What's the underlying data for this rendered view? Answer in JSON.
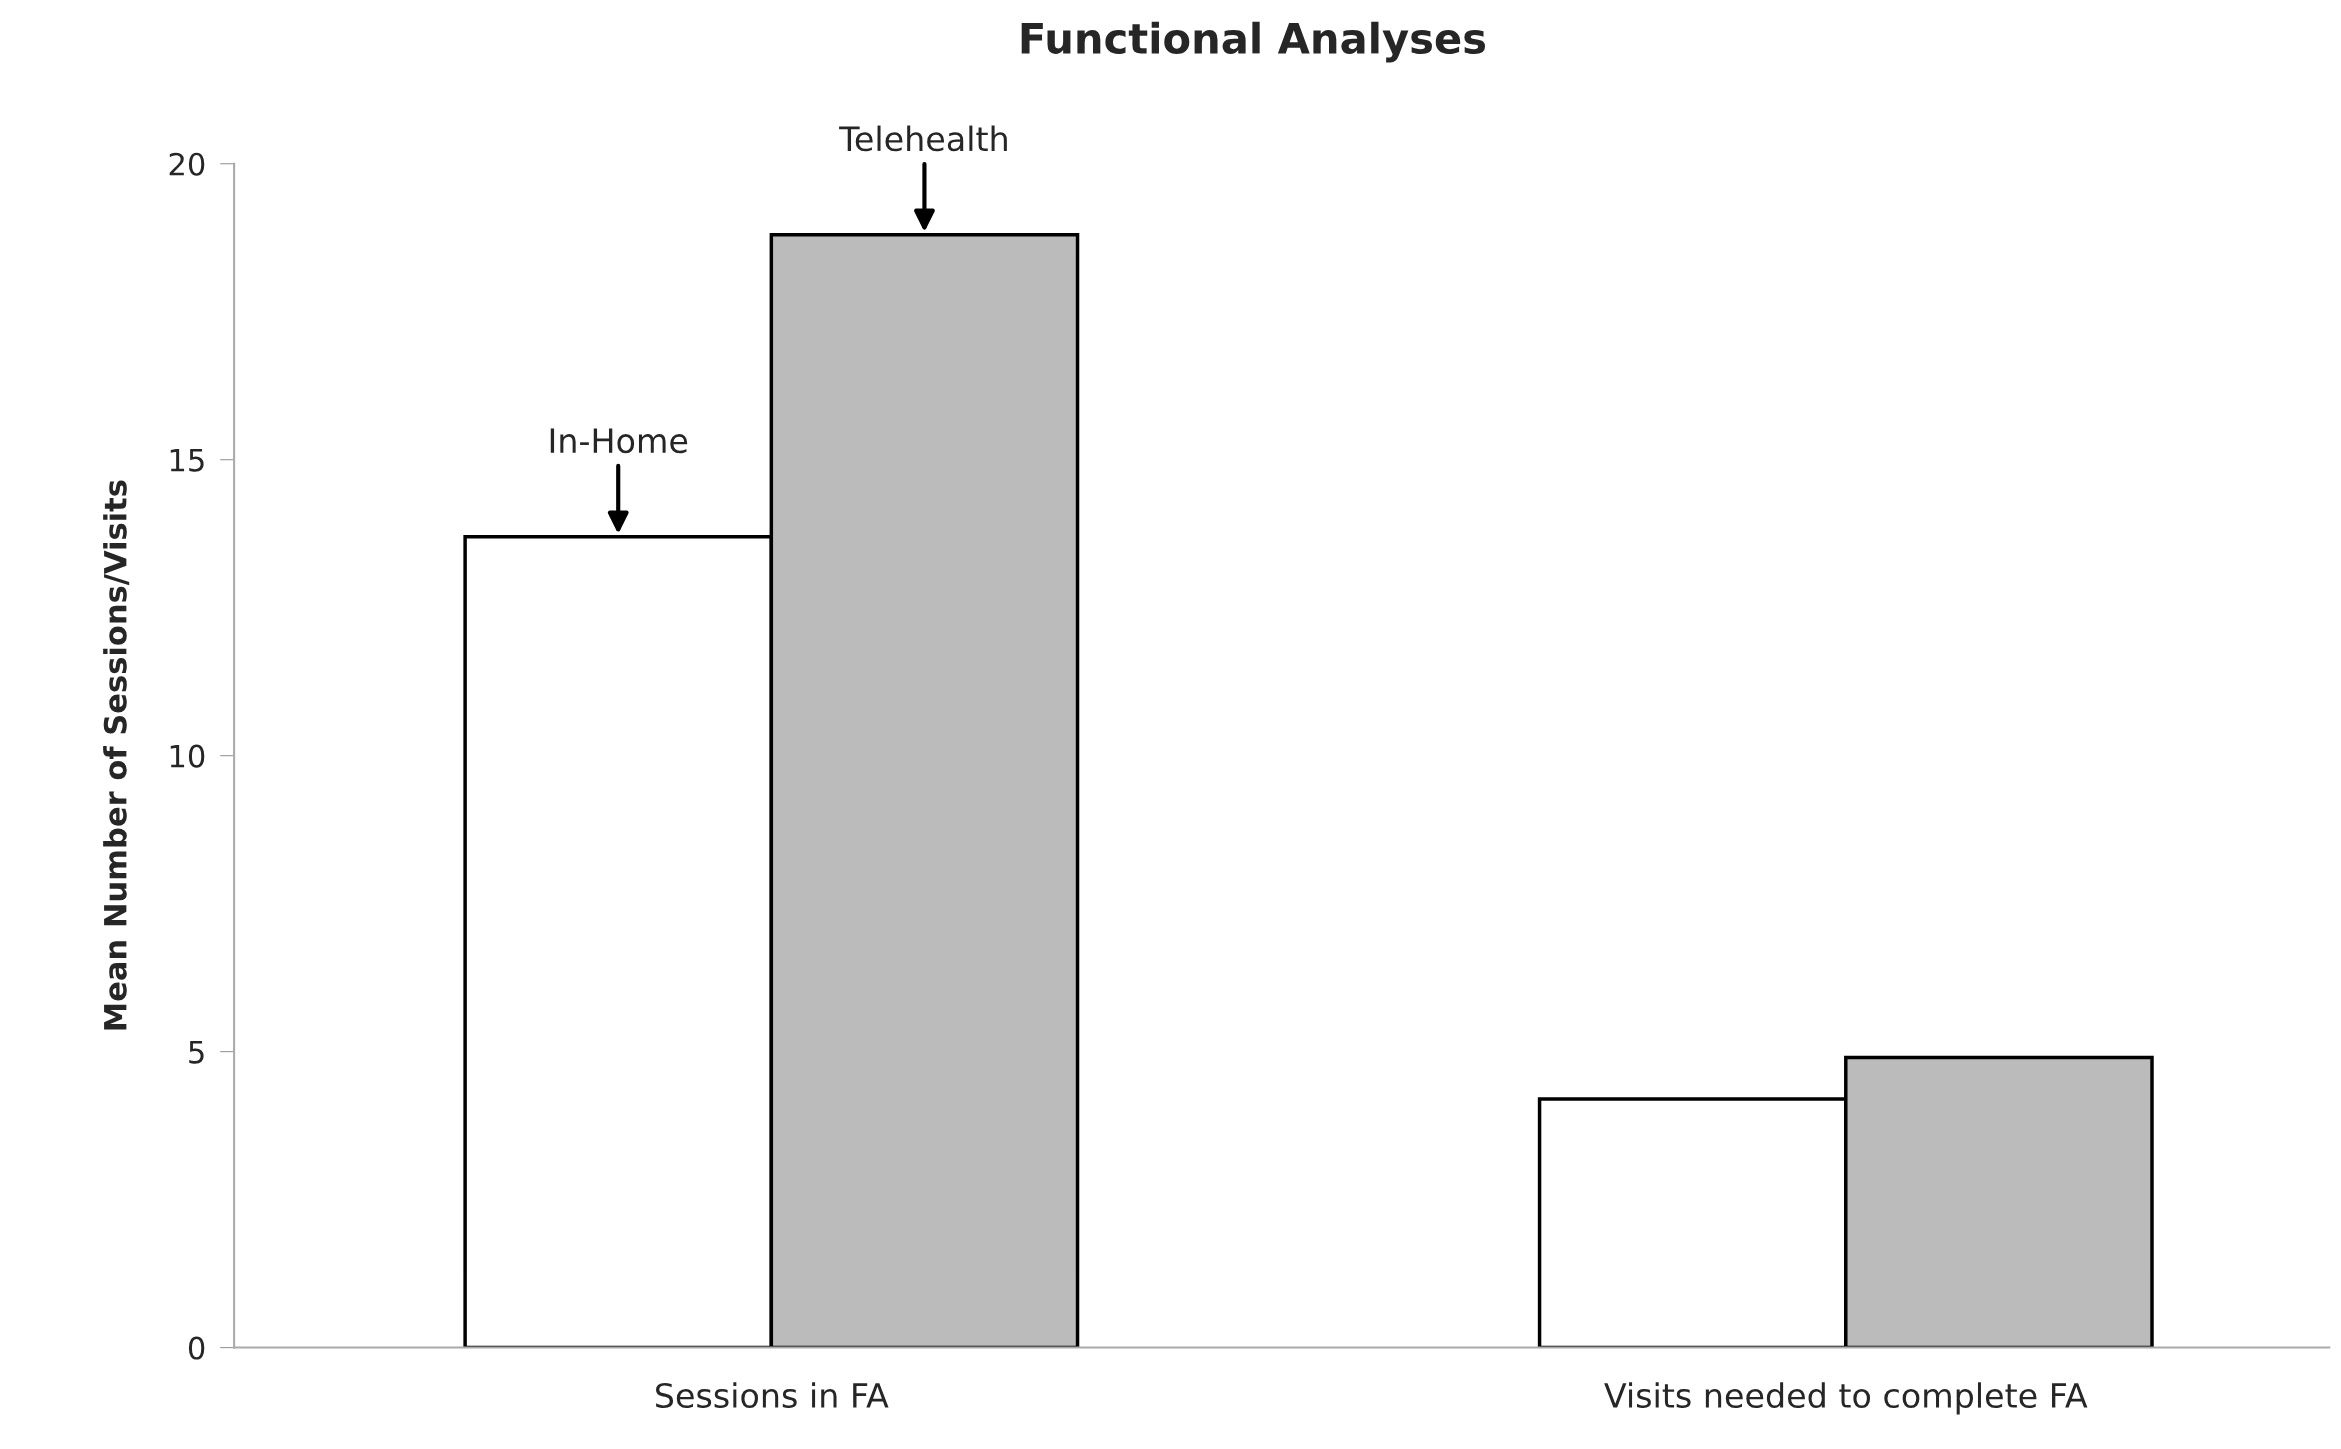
{
  "chart_data": {
    "type": "bar",
    "title": "Functional Analyses",
    "ylabel": "Mean Number of Sessions/Visits",
    "categories": [
      "Sessions in FA",
      "Visits needed to complete FA"
    ],
    "series": [
      {
        "name": "In-Home",
        "color": "#ffffff",
        "values": [
          13.7,
          4.2
        ]
      },
      {
        "name": "Telehealth",
        "color": "#bbbbbb",
        "values": [
          18.8,
          4.9
        ]
      }
    ],
    "ylim": [
      0,
      20
    ],
    "yticks": [
      0,
      5,
      10,
      15,
      20
    ],
    "grid": false,
    "legend": false
  }
}
